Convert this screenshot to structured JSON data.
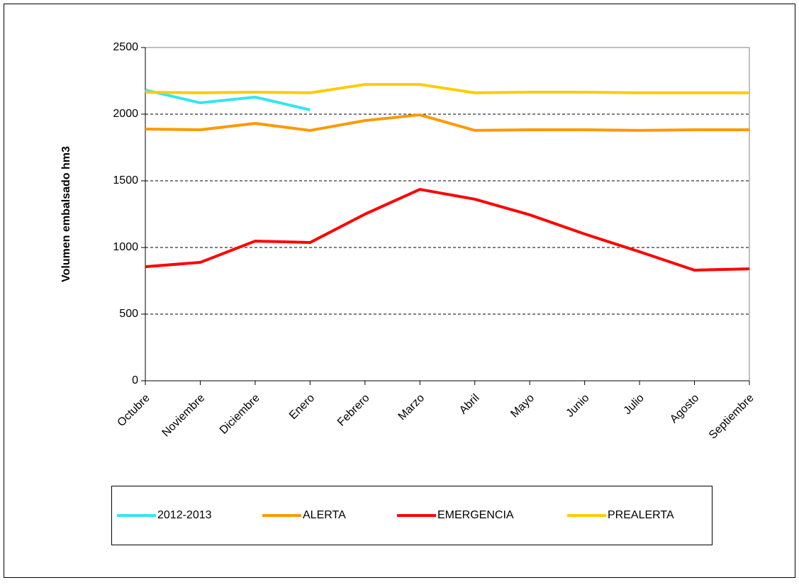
{
  "chart_data": {
    "type": "line",
    "ylabel": "Volumen embalsado hm3",
    "categories": [
      "Octubre",
      "Noviembre",
      "Diciembre",
      "Enero",
      "Febrero",
      "Marzo",
      "Abril",
      "Mayo",
      "Junio",
      "Julio",
      "Agosto",
      "Septiembre"
    ],
    "series": [
      {
        "name": "2012-2013",
        "color": "#33e6f0",
        "values": [
          2181,
          2085,
          2128,
          2032,
          null,
          null,
          null,
          null,
          null,
          null,
          null,
          null
        ]
      },
      {
        "name": "ALERTA",
        "color": "#ff9900",
        "values": [
          1888,
          1883,
          1931,
          1878,
          1952,
          1995,
          1878,
          1883,
          1883,
          1878,
          1883,
          1883
        ]
      },
      {
        "name": "EMERGENCIA",
        "color": "#ff0000",
        "values": [
          856,
          888,
          1048,
          1037,
          1250,
          1436,
          1362,
          1245,
          1101,
          968,
          830,
          840
        ]
      },
      {
        "name": "PREALERTA",
        "color": "#ffcc00",
        "values": [
          2165,
          2160,
          2165,
          2160,
          2223,
          2223,
          2160,
          2165,
          2165,
          2160,
          2160,
          2160
        ]
      }
    ],
    "ylim": [
      0,
      2500
    ],
    "yticks": [
      0,
      500,
      1000,
      1500,
      2000,
      2500
    ],
    "grid": true
  }
}
